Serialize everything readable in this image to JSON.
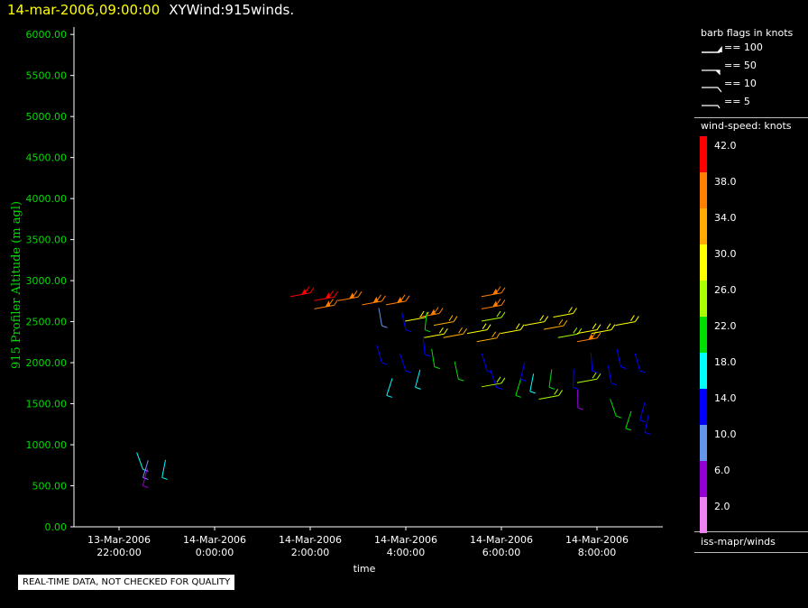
{
  "header": {
    "timestamp": "14-mar-2006,09:00:00",
    "name": "XYWind:915winds."
  },
  "notice": "REAL-TIME DATA, NOT CHECKED FOR QUALITY",
  "legend": {
    "flags_title": "barb flags in knots",
    "flags": [
      "== 100",
      "== 50",
      "== 10",
      "== 5"
    ],
    "speed_title": "wind-speed: knots",
    "speed_labels": [
      "42.0",
      "38.0",
      "34.0",
      "30.0",
      "26.0",
      "22.0",
      "18.0",
      "14.0",
      "10.0",
      "6.0",
      "2.0"
    ],
    "speed_colors": [
      "#ff0000",
      "#ff7f00",
      "#ffaa00",
      "#ffff00",
      "#aaff00",
      "#00e000",
      "#00ffff",
      "#0000ff",
      "#6495ed",
      "#9400d3",
      "#ee82ee"
    ],
    "source": "iss-mapr/winds"
  },
  "chart_data": {
    "type": "scatter",
    "ylabel": "915 Profiler Altitude (m agl)",
    "xlabel": "time",
    "ylim": [
      0,
      6200
    ],
    "yticks": [
      "0.00",
      "500.00",
      "1000.00",
      "1500.00",
      "2000.00",
      "2500.00",
      "3000.00",
      "3500.00",
      "4000.00",
      "4500.00",
      "5000.00",
      "5500.00",
      "6000.00"
    ],
    "xticks": [
      {
        "date": "13-Mar-2006",
        "time": "22:00:00"
      },
      {
        "date": "14-Mar-2006",
        "time": "0:00:00"
      },
      {
        "date": "14-Mar-2006",
        "time": "2:00:00"
      },
      {
        "date": "14-Mar-2006",
        "time": "4:00:00"
      },
      {
        "date": "14-Mar-2006",
        "time": "6:00:00"
      },
      {
        "date": "14-Mar-2006",
        "time": "8:00:00"
      }
    ],
    "points": [
      [
        22.5,
        700,
        18
      ],
      [
        22.5,
        600,
        10
      ],
      [
        22.5,
        500,
        6
      ],
      [
        22.9,
        600,
        18
      ],
      [
        2.0,
        2850,
        42
      ],
      [
        2.5,
        2800,
        42
      ],
      [
        2.5,
        2700,
        38
      ],
      [
        3.0,
        2800,
        40
      ],
      [
        3.5,
        2750,
        38
      ],
      [
        4.0,
        2750,
        38
      ],
      [
        3.5,
        2450,
        10
      ],
      [
        4.0,
        2400,
        14
      ],
      [
        3.5,
        2000,
        14
      ],
      [
        4.0,
        1900,
        14
      ],
      [
        3.6,
        1600,
        18
      ],
      [
        4.2,
        1700,
        18
      ],
      [
        4.4,
        2550,
        30
      ],
      [
        4.7,
        2600,
        38
      ],
      [
        4.4,
        2400,
        22
      ],
      [
        4.8,
        2350,
        30
      ],
      [
        5.2,
        2350,
        34
      ],
      [
        5.0,
        2500,
        34
      ],
      [
        4.4,
        2100,
        14
      ],
      [
        4.6,
        1950,
        22
      ],
      [
        5.1,
        1800,
        22
      ],
      [
        5.7,
        2400,
        30
      ],
      [
        5.9,
        2300,
        34
      ],
      [
        6.0,
        2550,
        26
      ],
      [
        6.0,
        2700,
        40
      ],
      [
        6.0,
        2850,
        40
      ],
      [
        6.4,
        2400,
        30
      ],
      [
        6.9,
        2500,
        30
      ],
      [
        7.3,
        2450,
        34
      ],
      [
        7.5,
        2600,
        30
      ],
      [
        7.6,
        2350,
        26
      ],
      [
        8.0,
        2400,
        30
      ],
      [
        8.0,
        2300,
        38
      ],
      [
        8.3,
        2400,
        30
      ],
      [
        8.8,
        2500,
        30
      ],
      [
        5.7,
        1900,
        14
      ],
      [
        5.9,
        1700,
        14
      ],
      [
        6.3,
        1600,
        22
      ],
      [
        6.4,
        1800,
        14
      ],
      [
        6.6,
        1650,
        18
      ],
      [
        7.0,
        1700,
        22
      ],
      [
        7.2,
        1600,
        26
      ],
      [
        7.5,
        1700,
        14
      ],
      [
        7.6,
        1450,
        6
      ],
      [
        7.9,
        1900,
        14
      ],
      [
        8.0,
        1800,
        26
      ],
      [
        8.3,
        1750,
        14
      ],
      [
        8.5,
        1950,
        14
      ],
      [
        8.9,
        1900,
        14
      ],
      [
        8.4,
        1350,
        22
      ],
      [
        8.6,
        1200,
        22
      ],
      [
        8.9,
        1300,
        14
      ],
      [
        9.0,
        1150,
        14
      ],
      [
        6.0,
        1750,
        26
      ]
    ]
  }
}
